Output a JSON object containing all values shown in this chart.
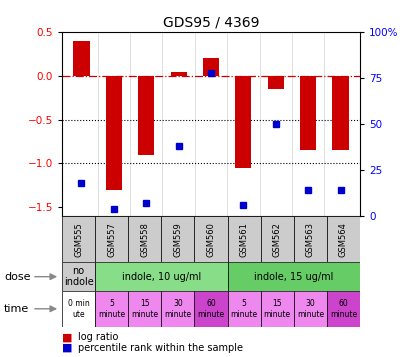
{
  "title": "GDS95 / 4369",
  "samples": [
    "GSM555",
    "GSM557",
    "GSM558",
    "GSM559",
    "GSM560",
    "GSM561",
    "GSM562",
    "GSM563",
    "GSM564"
  ],
  "log_ratio": [
    0.4,
    -1.3,
    -0.9,
    0.05,
    0.2,
    -1.05,
    -0.15,
    -0.85,
    -0.85
  ],
  "percentile": [
    18,
    4,
    7,
    38,
    78,
    6,
    50,
    14,
    14
  ],
  "ylim_left": [
    -1.6,
    0.5
  ],
  "ylim_right": [
    0,
    100
  ],
  "yticks_left": [
    -1.5,
    -1.0,
    -0.5,
    0.0,
    0.5
  ],
  "yticks_right": [
    0,
    25,
    50,
    75,
    100
  ],
  "bar_color": "#cc0000",
  "square_color": "#0000cc",
  "hline_color": "#cc0000",
  "dot_line_color": "#000000",
  "dose_spans": [
    1,
    4,
    4
  ],
  "dose_labels": [
    "no\nindole",
    "indole, 10 ug/ml",
    "indole, 15 ug/ml"
  ],
  "dose_colors": [
    "#cccccc",
    "#88dd88",
    "#66cc66"
  ],
  "time_cells": [
    "0 min\nute",
    "5\nminute",
    "15\nminute",
    "30\nminute",
    "60\nminute",
    "5\nminute",
    "15\nminute",
    "30\nminute",
    "60\nminute"
  ],
  "time_colors": [
    "#ffffff",
    "#ee88ee",
    "#ee88ee",
    "#ee88ee",
    "#cc44cc",
    "#ee88ee",
    "#ee88ee",
    "#ee88ee",
    "#cc44cc"
  ],
  "legend_items": [
    {
      "label": "log ratio",
      "color": "#cc0000"
    },
    {
      "label": "percentile rank within the sample",
      "color": "#0000cc"
    }
  ]
}
